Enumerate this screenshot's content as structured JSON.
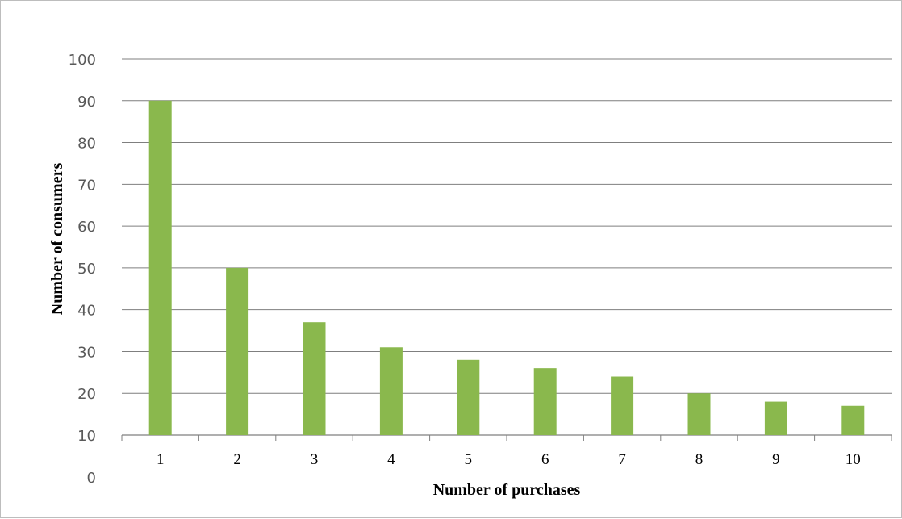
{
  "chart_data": {
    "type": "bar",
    "categories": [
      "1",
      "2",
      "3",
      "4",
      "5",
      "6",
      "7",
      "8",
      "9",
      "10"
    ],
    "series": [
      {
        "values": [
          90,
          50,
          37,
          31,
          28,
          26,
          24,
          20,
          18,
          17
        ]
      }
    ],
    "ytick_labels": [
      "0",
      "10",
      "20",
      "30",
      "40",
      "50",
      "60",
      "70",
      "80",
      "90",
      "100"
    ],
    "xlabel": "Number of purchases",
    "ylabel": "Number of consumers",
    "ylim": [
      10,
      100
    ],
    "grid": true,
    "bar_color": "#8ab84d",
    "grid_color": "#7f7f7f"
  }
}
